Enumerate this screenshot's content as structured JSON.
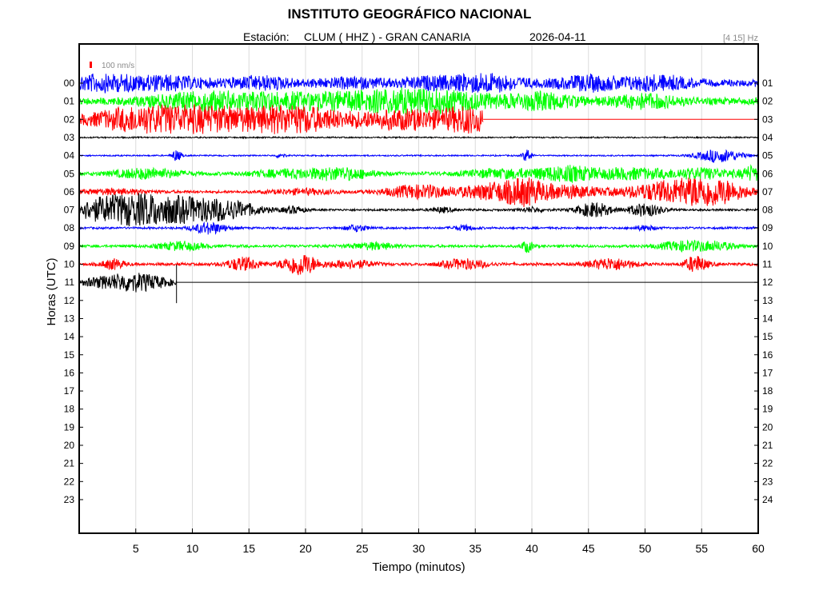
{
  "header": {
    "title": "INSTITUTO GEOGRÁFICO NACIONAL",
    "station_prefix": "Estación:",
    "station": "CLUM ( HHZ ) - GRAN CANARIA",
    "date": "2026-04-11",
    "filter": "[4 15] Hz"
  },
  "chart_data": {
    "type": "line",
    "title": "INSTITUTO GEOGRÁFICO NACIONAL",
    "xlabel": "Tiempo (minutos)",
    "ylabel": "Horas (UTC)",
    "xlim": [
      0,
      60
    ],
    "x_ticks": [
      5,
      10,
      15,
      20,
      25,
      30,
      35,
      40,
      45,
      50,
      55,
      60
    ],
    "left_hours": [
      "00",
      "01",
      "02",
      "03",
      "04",
      "05",
      "06",
      "07",
      "08",
      "09",
      "10",
      "11",
      "12",
      "13",
      "14",
      "15",
      "16",
      "17",
      "18",
      "19",
      "20",
      "21",
      "22",
      "23"
    ],
    "right_hours": [
      "01",
      "02",
      "03",
      "04",
      "05",
      "06",
      "07",
      "08",
      "09",
      "10",
      "11",
      "12",
      "13",
      "14",
      "15",
      "16",
      "17",
      "18",
      "19",
      "20",
      "21",
      "22",
      "23",
      "24"
    ],
    "grid": true,
    "scale_label": "100 nm/s",
    "colors": [
      "#0000ff",
      "#00ff00",
      "#ff0000",
      "#000000"
    ],
    "series": [
      {
        "hour": 0,
        "end_minute": 60,
        "base_amp": 5,
        "bursts": [
          [
            2,
            8,
            4
          ],
          [
            8,
            6,
            3
          ],
          [
            16,
            6,
            3
          ],
          [
            24,
            4,
            3
          ],
          [
            31,
            5,
            3
          ],
          [
            36,
            9,
            3
          ],
          [
            45,
            7,
            3
          ],
          [
            51,
            7,
            3
          ]
        ]
      },
      {
        "hour": 1,
        "end_minute": 60,
        "base_amp": 5,
        "bursts": [
          [
            11,
            9,
            5
          ],
          [
            19,
            7,
            5
          ],
          [
            27,
            10,
            5
          ],
          [
            33,
            8,
            5
          ],
          [
            41,
            8,
            3
          ],
          [
            50,
            7,
            3
          ]
        ]
      },
      {
        "hour": 2,
        "end_minute": 35.7,
        "base_amp": 6,
        "bursts": [
          [
            5,
            10,
            4
          ],
          [
            11,
            12,
            5
          ],
          [
            19,
            13,
            4
          ],
          [
            29,
            9,
            5
          ],
          [
            34.5,
            11,
            2
          ]
        ]
      },
      {
        "hour": 3,
        "end_minute": 60,
        "base_amp": 1,
        "bursts": []
      },
      {
        "hour": 4,
        "end_minute": 60,
        "base_amp": 1,
        "bursts": [
          [
            8.6,
            7,
            0.4
          ],
          [
            17.8,
            3,
            0.4
          ],
          [
            39.6,
            8,
            0.4
          ],
          [
            56.6,
            8,
            2
          ]
        ]
      },
      {
        "hour": 5,
        "end_minute": 60,
        "base_amp": 2.5,
        "bursts": [
          [
            6,
            6,
            3
          ],
          [
            18,
            4,
            3
          ],
          [
            23,
            7,
            3
          ],
          [
            37,
            5,
            3
          ],
          [
            43,
            9,
            3
          ],
          [
            49,
            6,
            3
          ],
          [
            55,
            6,
            3
          ],
          [
            59.5,
            8,
            1
          ]
        ]
      },
      {
        "hour": 6,
        "end_minute": 60,
        "base_amp": 2,
        "bursts": [
          [
            3,
            3,
            3
          ],
          [
            20,
            3,
            3
          ],
          [
            30,
            8,
            3
          ],
          [
            37,
            11,
            3
          ],
          [
            39.5,
            10,
            1.5
          ],
          [
            43,
            8,
            3
          ],
          [
            52,
            11,
            4
          ],
          [
            56,
            14,
            3
          ]
        ]
      },
      {
        "hour": 7,
        "end_minute": 60,
        "base_amp": 1.5,
        "bursts": [
          [
            2,
            12,
            3
          ],
          [
            5.5,
            14,
            3
          ],
          [
            9,
            11,
            3
          ],
          [
            13,
            11,
            3
          ],
          [
            19,
            4,
            1
          ],
          [
            32,
            3,
            1
          ],
          [
            40,
            3,
            1
          ],
          [
            45.5,
            9,
            1.5
          ],
          [
            50,
            8,
            1.5
          ]
        ]
      },
      {
        "hour": 8,
        "end_minute": 60,
        "base_amp": 1.5,
        "bursts": [
          [
            11.5,
            7,
            1.5
          ],
          [
            24.5,
            4,
            1
          ],
          [
            34,
            3,
            1
          ],
          [
            50,
            3,
            1
          ]
        ]
      },
      {
        "hour": 9,
        "end_minute": 60,
        "base_amp": 2,
        "bursts": [
          [
            9,
            5,
            2
          ],
          [
            26,
            4,
            2
          ],
          [
            39.6,
            7,
            0.5
          ],
          [
            53,
            5,
            2
          ],
          [
            56,
            5,
            2
          ]
        ]
      },
      {
        "hour": 10,
        "end_minute": 60,
        "base_amp": 2,
        "bursts": [
          [
            3,
            6,
            1
          ],
          [
            14.5,
            8,
            1.5
          ],
          [
            19.5,
            14,
            1.5
          ],
          [
            24,
            5,
            2
          ],
          [
            34,
            6,
            2
          ],
          [
            47,
            7,
            2
          ],
          [
            54.5,
            10,
            1
          ]
        ]
      },
      {
        "hour": 11,
        "end_minute": 8.6,
        "base_amp": 2,
        "bursts": [
          [
            2,
            5,
            2
          ],
          [
            4.5,
            8,
            2
          ],
          [
            6.5,
            5,
            2
          ]
        ]
      }
    ]
  }
}
